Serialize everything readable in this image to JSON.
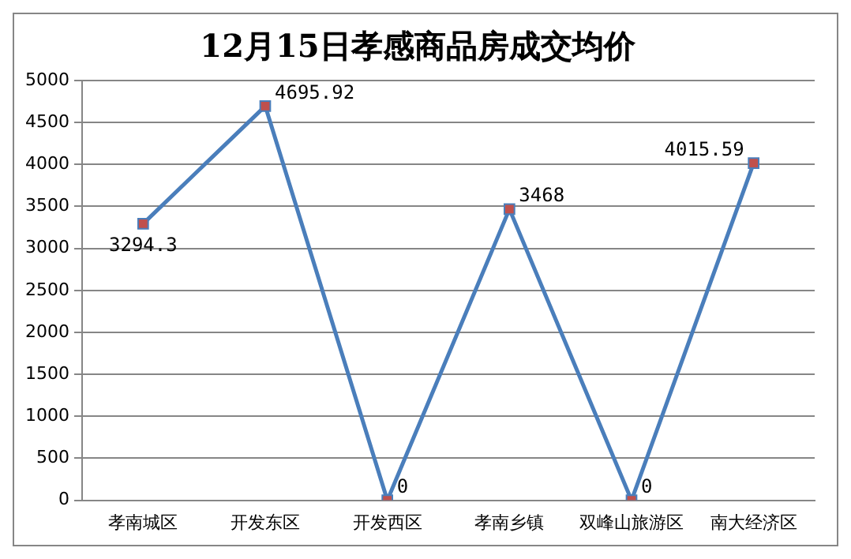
{
  "chart_data": {
    "type": "line",
    "title": "12月15日孝感商品房成交均价",
    "categories": [
      "孝南城区",
      "开发东区",
      "开发西区",
      "孝南乡镇",
      "双峰山旅游区",
      "南大经济区"
    ],
    "series": [
      {
        "color": "#4a7ebb",
        "values": [
          3294.3,
          4695.92,
          0,
          3468,
          0,
          4015.59
        ]
      }
    ],
    "ylim": [
      0,
      5000
    ],
    "yticks": [
      0,
      500,
      1000,
      1500,
      2000,
      2500,
      3000,
      3500,
      4000,
      4500,
      5000
    ],
    "grid": "y",
    "marker": "square",
    "line_style": "solid",
    "data_labels": true,
    "legend": false
  }
}
